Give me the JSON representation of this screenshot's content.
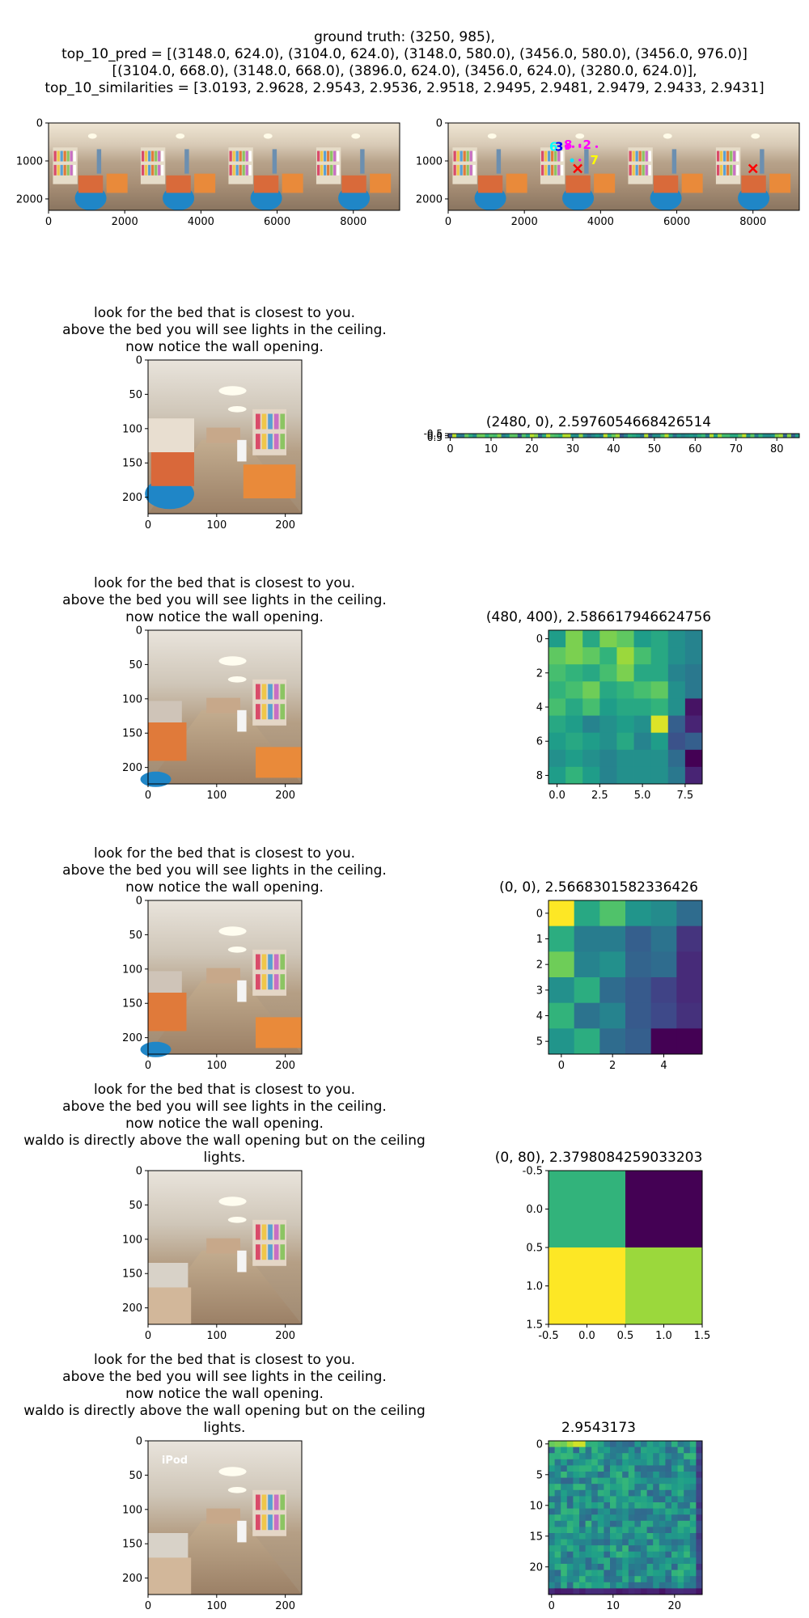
{
  "header": {
    "lines": [
      "ground truth: (3250, 985),",
      "top_10_pred = [(3148.0, 624.0), (3104.0, 624.0), (3148.0, 580.0), (3456.0, 580.0), (3456.0, 976.0)]",
      "[(3104.0, 668.0), (3148.0, 668.0), (3896.0, 624.0), (3456.0, 624.0), (3280.0, 624.0)],",
      "top_10_similarities = [3.0193, 2.9628, 2.9543, 2.9536, 2.9518, 2.9495, 2.9481, 2.9479, 2.9433, 2.9431]"
    ]
  },
  "captions": [
    [
      "look for the bed that is closest to you.",
      "above the bed you will see lights in the ceiling.",
      "now notice the wall opening."
    ],
    [
      "look for the bed that is closest to you.",
      "above the bed you will see lights in the ceiling.",
      "now notice the wall opening."
    ],
    [
      "look for the bed that is closest to you.",
      "above the bed you will see lights in the ceiling.",
      "now notice the wall opening."
    ],
    [
      "look for the bed that is closest to you.",
      "above the bed you will see lights in the ceiling.",
      "now notice the wall opening.",
      "waldo is directly above the wall opening but on the ceiling",
      "lights."
    ],
    [
      "look for the bed that is closest to you.",
      "above the bed you will see lights in the ceiling.",
      "now notice the wall opening.",
      "waldo is directly above the wall opening but on the ceiling",
      "lights."
    ]
  ],
  "heatmap_titles": [
    "(2480, 0), 2.5976054668426514",
    "(480, 400), 2.586617946624756",
    "(0, 0), 2.5668301582336426",
    "(0, 80), 2.3798084259033203",
    "2.9543173"
  ],
  "watermark_text": "iPod",
  "pred_labels": [
    "6",
    "3",
    "8",
    "2",
    "7"
  ],
  "chart_data": [
    {
      "type": "image",
      "panel": "panorama",
      "xlim": [
        0,
        9216
      ],
      "ylim": [
        2300,
        0
      ],
      "xticks": [
        "0",
        "2000",
        "4000",
        "6000",
        "8000"
      ],
      "yticks": [
        "0",
        "1000",
        "2000"
      ]
    },
    {
      "type": "scatter",
      "panel": "panorama-with-predictions",
      "xlim": [
        0,
        9216
      ],
      "ylim": [
        2300,
        0
      ],
      "xticks": [
        "0",
        "2000",
        "4000",
        "6000",
        "8000"
      ],
      "yticks": [
        "0",
        "1000",
        "2000"
      ],
      "ground_truth": {
        "x": 3250,
        "y": 985
      },
      "predictions": [
        {
          "x": 3148,
          "y": 624
        },
        {
          "x": 3104,
          "y": 624
        },
        {
          "x": 3148,
          "y": 580
        },
        {
          "x": 3456,
          "y": 580
        },
        {
          "x": 3456,
          "y": 976
        },
        {
          "x": 3104,
          "y": 668
        },
        {
          "x": 3148,
          "y": 668
        },
        {
          "x": 3896,
          "y": 624
        },
        {
          "x": 3456,
          "y": 624
        },
        {
          "x": 3280,
          "y": 624
        }
      ],
      "x_markers": [
        {
          "x": 3400,
          "y": 1200
        },
        {
          "x": 8000,
          "y": 1200
        }
      ]
    },
    {
      "type": "image",
      "panel": "crop",
      "xticks": [
        "0",
        "100",
        "200"
      ],
      "yticks": [
        "0",
        "50",
        "100",
        "150",
        "200"
      ]
    },
    {
      "type": "image",
      "panel": "crop",
      "xticks": [
        "0",
        "100",
        "200"
      ],
      "yticks": [
        "0",
        "50",
        "100",
        "150",
        "200"
      ]
    },
    {
      "type": "image",
      "panel": "crop",
      "xticks": [
        "0",
        "100",
        "200"
      ],
      "yticks": [
        "0",
        "50",
        "100",
        "150",
        "200"
      ]
    },
    {
      "type": "image",
      "panel": "crop",
      "xticks": [
        "0",
        "100",
        "200"
      ],
      "yticks": [
        "0",
        "50",
        "100",
        "150",
        "200"
      ]
    },
    {
      "type": "image",
      "panel": "crop",
      "xticks": [
        "0",
        "100",
        "200"
      ],
      "yticks": [
        "0",
        "50",
        "100",
        "150",
        "200"
      ]
    },
    {
      "type": "heatmap",
      "title": "(2480, 0), 2.5976054668426514",
      "rows": 1,
      "cols": 86,
      "xlim": [
        -0.5,
        85.5
      ],
      "xticks": [
        "0",
        "10",
        "20",
        "30",
        "40",
        "50",
        "60",
        "70",
        "80"
      ],
      "yticks": [
        "-0.5",
        "0.0",
        "0.5"
      ]
    },
    {
      "type": "heatmap",
      "title": "(480, 400), 2.586617946624756",
      "rows": 9,
      "cols": 9,
      "xticks": [
        "0.0",
        "2.5",
        "5.0",
        "7.5"
      ],
      "yticks": [
        "0",
        "2",
        "4",
        "6",
        "8"
      ],
      "values": [
        [
          0.55,
          0.8,
          0.6,
          0.8,
          0.75,
          0.55,
          0.6,
          0.5,
          0.45
        ],
        [
          0.75,
          0.8,
          0.75,
          0.65,
          0.85,
          0.7,
          0.6,
          0.5,
          0.45
        ],
        [
          0.7,
          0.65,
          0.6,
          0.7,
          0.8,
          0.6,
          0.6,
          0.45,
          0.4
        ],
        [
          0.65,
          0.7,
          0.78,
          0.6,
          0.65,
          0.7,
          0.75,
          0.5,
          0.4
        ],
        [
          0.7,
          0.6,
          0.7,
          0.55,
          0.6,
          0.6,
          0.65,
          0.5,
          0.05
        ],
        [
          0.6,
          0.55,
          0.45,
          0.5,
          0.55,
          0.5,
          0.95,
          0.3,
          0.1
        ],
        [
          0.55,
          0.6,
          0.55,
          0.5,
          0.6,
          0.45,
          0.55,
          0.25,
          0.3
        ],
        [
          0.5,
          0.55,
          0.5,
          0.45,
          0.5,
          0.5,
          0.5,
          0.35,
          0.0
        ],
        [
          0.55,
          0.65,
          0.55,
          0.45,
          0.5,
          0.5,
          0.5,
          0.4,
          0.1
        ]
      ]
    },
    {
      "type": "heatmap",
      "title": "(0, 0), 2.5668301582336426",
      "rows": 6,
      "cols": 6,
      "xticks": [
        "0",
        "2",
        "4"
      ],
      "yticks": [
        "0",
        "1",
        "2",
        "3",
        "4",
        "5"
      ],
      "values": [
        [
          1.0,
          0.6,
          0.72,
          0.52,
          0.48,
          0.35
        ],
        [
          0.62,
          0.42,
          0.42,
          0.3,
          0.38,
          0.15
        ],
        [
          0.78,
          0.45,
          0.5,
          0.32,
          0.35,
          0.12
        ],
        [
          0.5,
          0.62,
          0.35,
          0.28,
          0.2,
          0.12
        ],
        [
          0.65,
          0.38,
          0.45,
          0.28,
          0.22,
          0.14
        ],
        [
          0.52,
          0.62,
          0.35,
          0.3,
          0.0,
          0.0
        ]
      ]
    },
    {
      "type": "heatmap",
      "title": "(0, 80), 2.3798084259033203",
      "rows": 2,
      "cols": 2,
      "xlim": [
        -0.5,
        1.5
      ],
      "ylim": [
        1.5,
        -0.5
      ],
      "xticks": [
        "-0.5",
        "0.0",
        "0.5",
        "1.0",
        "1.5"
      ],
      "yticks": [
        "-0.5",
        "0.0",
        "0.5",
        "1.0",
        "1.5"
      ],
      "values": [
        [
          0.65,
          0.0
        ],
        [
          1.0,
          0.85
        ]
      ]
    },
    {
      "type": "heatmap",
      "title": "2.9543173",
      "rows": 25,
      "cols": 25,
      "xticks": [
        "0",
        "10",
        "20"
      ],
      "yticks": [
        "0",
        "5",
        "10",
        "15",
        "20"
      ]
    }
  ]
}
